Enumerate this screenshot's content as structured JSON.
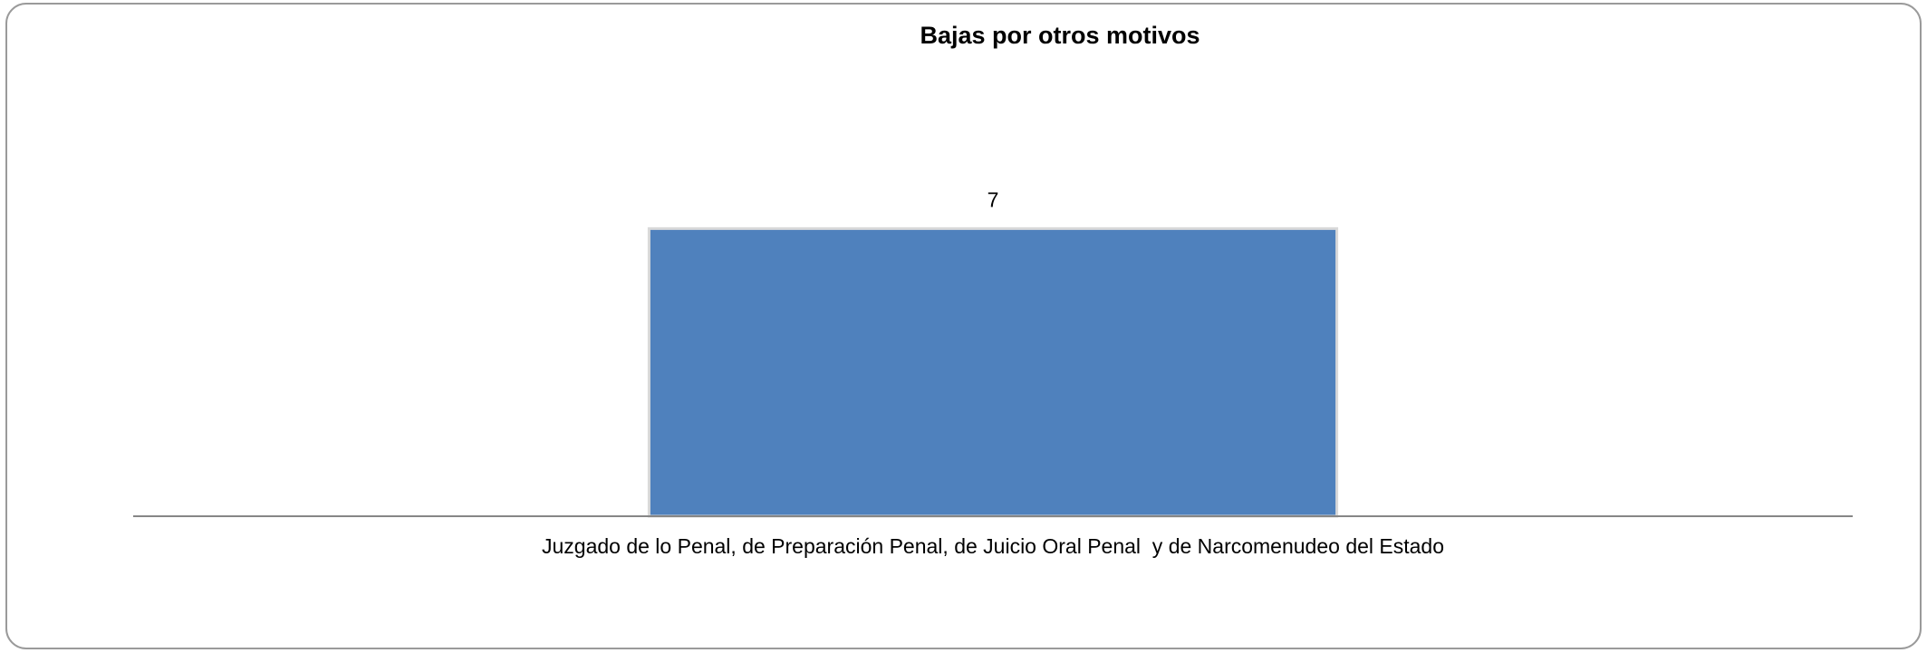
{
  "chart_data": {
    "type": "bar",
    "title": "Bajas por otros motivos",
    "categories": [
      "Juzgado de lo Penal, de Preparación Penal, de Juicio Oral Penal  y de Narcomenudeo del Estado"
    ],
    "values": [
      7
    ],
    "color": "#4f81bd",
    "ylim": [
      0,
      8
    ]
  }
}
